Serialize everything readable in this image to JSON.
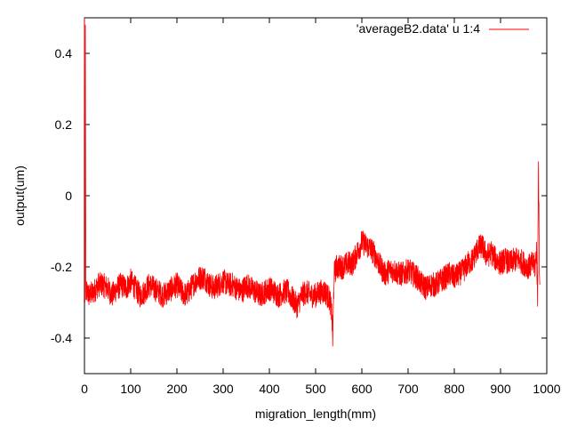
{
  "chart_data": {
    "type": "line",
    "title": "",
    "xlabel": "migration_length(mm)",
    "ylabel": "output(um)",
    "xlim": [
      0,
      1000
    ],
    "ylim": [
      -0.5,
      0.5
    ],
    "x_ticks": [
      0,
      100,
      200,
      300,
      400,
      500,
      600,
      700,
      800,
      900,
      1000
    ],
    "x_tick_labels": [
      "0",
      "100",
      "200",
      "300",
      "400",
      "500",
      "600",
      "700",
      "800",
      "900",
      "1000"
    ],
    "y_ticks": [
      -0.4,
      -0.2,
      0,
      0.2,
      0.4
    ],
    "y_tick_labels": [
      "-0.4",
      "-0.2",
      "0",
      "0.2",
      "0.4"
    ],
    "grid": false,
    "legend_position": "top-right",
    "series": [
      {
        "name": "'averageB2.data' u 1:4",
        "color": "#ff0000",
        "noise_amplitude": 0.035,
        "x": [
          0,
          1,
          2,
          3,
          5,
          10,
          20,
          30,
          40,
          50,
          60,
          70,
          80,
          90,
          100,
          110,
          120,
          130,
          140,
          150,
          160,
          170,
          180,
          190,
          200,
          210,
          220,
          230,
          240,
          250,
          260,
          270,
          280,
          290,
          300,
          310,
          320,
          330,
          340,
          350,
          360,
          370,
          380,
          390,
          400,
          410,
          420,
          430,
          440,
          450,
          460,
          470,
          480,
          490,
          500,
          510,
          520,
          530,
          535,
          537,
          540,
          545,
          550,
          560,
          570,
          580,
          590,
          600,
          610,
          620,
          630,
          640,
          650,
          660,
          670,
          680,
          690,
          700,
          710,
          720,
          730,
          740,
          750,
          760,
          770,
          780,
          790,
          800,
          810,
          820,
          830,
          840,
          850,
          860,
          870,
          880,
          890,
          900,
          910,
          920,
          930,
          940,
          950,
          960,
          970,
          975,
          978,
          980,
          982,
          984,
          985
        ],
        "y": [
          0.5,
          -0.3,
          0.48,
          -0.28,
          -0.27,
          -0.28,
          -0.27,
          -0.25,
          -0.25,
          -0.26,
          -0.28,
          -0.26,
          -0.25,
          -0.26,
          -0.24,
          -0.26,
          -0.28,
          -0.27,
          -0.25,
          -0.26,
          -0.27,
          -0.28,
          -0.27,
          -0.26,
          -0.25,
          -0.27,
          -0.28,
          -0.26,
          -0.24,
          -0.23,
          -0.23,
          -0.25,
          -0.26,
          -0.25,
          -0.24,
          -0.25,
          -0.25,
          -0.26,
          -0.27,
          -0.25,
          -0.26,
          -0.27,
          -0.28,
          -0.27,
          -0.26,
          -0.27,
          -0.28,
          -0.27,
          -0.27,
          -0.29,
          -0.31,
          -0.28,
          -0.27,
          -0.28,
          -0.28,
          -0.27,
          -0.27,
          -0.29,
          -0.33,
          -0.41,
          -0.22,
          -0.2,
          -0.2,
          -0.2,
          -0.19,
          -0.19,
          -0.16,
          -0.13,
          -0.14,
          -0.15,
          -0.17,
          -0.2,
          -0.22,
          -0.21,
          -0.21,
          -0.22,
          -0.22,
          -0.21,
          -0.22,
          -0.23,
          -0.25,
          -0.26,
          -0.25,
          -0.25,
          -0.24,
          -0.23,
          -0.22,
          -0.23,
          -0.22,
          -0.21,
          -0.19,
          -0.18,
          -0.15,
          -0.14,
          -0.17,
          -0.16,
          -0.18,
          -0.19,
          -0.18,
          -0.19,
          -0.18,
          -0.18,
          -0.19,
          -0.2,
          -0.19,
          -0.2,
          -0.15,
          -0.3,
          0.12,
          -0.22,
          -0.25
        ]
      }
    ]
  }
}
